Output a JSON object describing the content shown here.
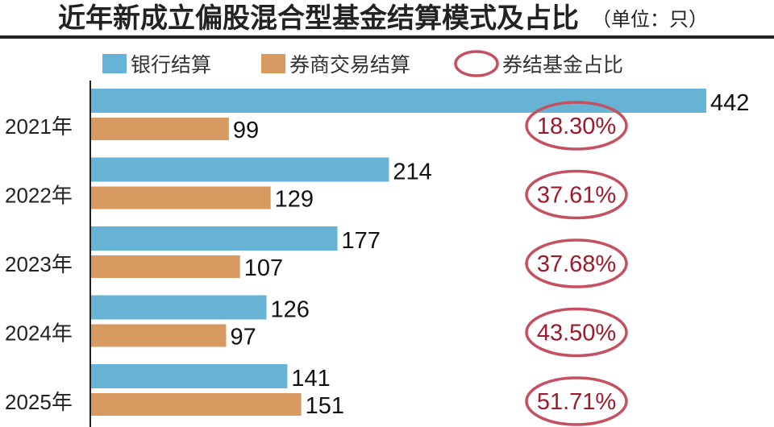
{
  "chart_data": {
    "type": "bar",
    "orientation": "horizontal",
    "title": "近年新成立偏股混合型基金结算模式及占比",
    "unit": "（单位：只）",
    "categories": [
      "2021年",
      "2022年",
      "2023年",
      "2024年",
      "2025年"
    ],
    "series": [
      {
        "name": "银行结算",
        "values": [
          442,
          214,
          177,
          126,
          141
        ],
        "color": "#66b3d6"
      },
      {
        "name": "券商交易结算",
        "values": [
          99,
          129,
          107,
          97,
          151
        ],
        "color": "#d99a62"
      }
    ],
    "ratio": {
      "name": "券结基金占比",
      "values": [
        "18.30%",
        "37.61%",
        "37.68%",
        "43.50%",
        "51.71%"
      ],
      "color": "#c45060",
      "text_color": "#9b1b2a"
    },
    "legend": "top",
    "grid": false
  }
}
